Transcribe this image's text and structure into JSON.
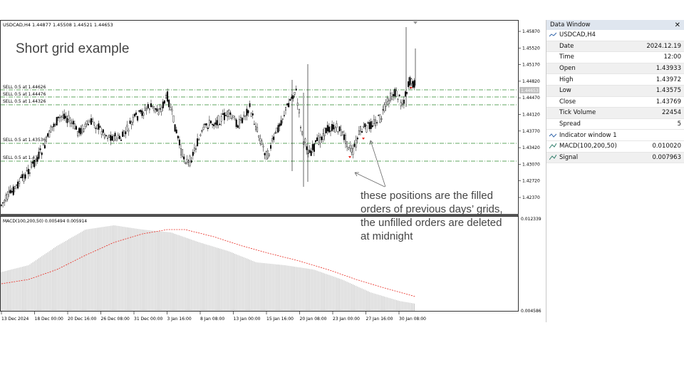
{
  "chart": {
    "header": "USDCAD,H4  1.44877 1.45508 1.44521 1.44653",
    "annotation_title": "Short grid example",
    "note_lines": [
      "these positions are the filled",
      "orders of previous days’ grids,",
      "the unfilled orders are deleted",
      "at midnight"
    ],
    "sell_labels": [
      "SELL 0.5 at 1.44626",
      "SELL 0.5 at 1.44476",
      "SELL 0.5 at 1.44326",
      "SELL 0.5 at 1.43536",
      "SELL 0.5 at 1.43"
    ],
    "price_ticks": [
      "1.45870",
      "1.45520",
      "1.45170",
      "1.44820",
      "1.44470",
      "1.44120",
      "1.43770",
      "1.43420",
      "1.43070",
      "1.42720",
      "1.42370"
    ],
    "price_marker": "1.44653",
    "macd_label": "MACD(100,200,50) 0.005494 0.005914",
    "macd_ticks": [
      "0.012339",
      "0.004586"
    ],
    "date_ticks": [
      "13 Dec 2024",
      "18 Dec 00:00",
      "20 Dec 16:00",
      "26 Dec 08:00",
      "31 Dec 00:00",
      "3 Jan 16:00",
      "8 Jan 08:00",
      "13 Jan 00:00",
      "15 Jan 16:00",
      "20 Jan 08:00",
      "23 Jan 00:00",
      "27 Jan 16:00",
      "30 Jan 08:00"
    ],
    "colors": {
      "grid_line": "#2e8b2e",
      "signal": "#e8281e",
      "histogram": "#b4b4b4",
      "candle": "#000000"
    }
  },
  "data_window": {
    "title": "Data Window",
    "symbol": "USDCAD,H4",
    "rows": [
      {
        "key": "Date",
        "value": "2024.12.19"
      },
      {
        "key": "Time",
        "value": "12:00"
      },
      {
        "key": "Open",
        "value": "1.43933"
      },
      {
        "key": "High",
        "value": "1.43972"
      },
      {
        "key": "Low",
        "value": "1.43575"
      },
      {
        "key": "Close",
        "value": "1.43769"
      },
      {
        "key": "Tick Volume",
        "value": "22454"
      },
      {
        "key": "Spread",
        "value": "5"
      }
    ],
    "indicator_group": "Indicator window 1",
    "indicators": [
      {
        "key": "MACD(100,200,50)",
        "value": "0.010020"
      },
      {
        "key": "Signal",
        "value": "0.007963"
      }
    ]
  }
}
